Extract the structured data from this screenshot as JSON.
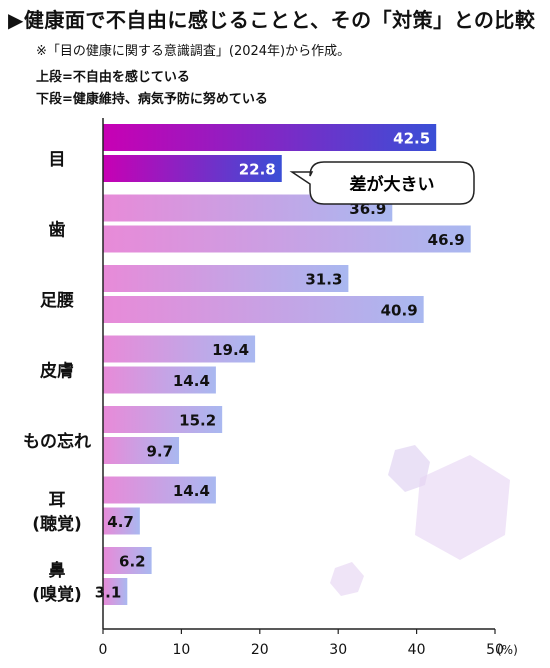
{
  "title": "▶健康面で不自由に感じることと、その「対策」との比較",
  "note": "※「目の健康に関する意識調査」(2024年)から作成。",
  "legend_upper": "上段=不自由を感じている",
  "legend_lower": "下段=健康維持、病気予防に努めている",
  "callout": "差が大きい",
  "chart_data": {
    "type": "bar",
    "orientation": "horizontal",
    "categories": [
      [
        "目"
      ],
      [
        "歯"
      ],
      [
        "足腰"
      ],
      [
        "皮膚"
      ],
      [
        "もの忘れ"
      ],
      [
        "耳",
        "(聴覚)"
      ],
      [
        "鼻",
        "(嗅覚)"
      ]
    ],
    "series": [
      {
        "values": [
          42.5,
          36.9,
          31.3,
          19.4,
          15.2,
          14.4,
          6.2
        ]
      },
      {
        "values": [
          22.8,
          46.9,
          40.9,
          14.4,
          9.7,
          4.7,
          3.1
        ]
      }
    ],
    "xlim": [
      0,
      50
    ],
    "xticks": [
      0,
      10,
      20,
      30,
      40,
      50
    ],
    "unit": "(%)",
    "colors": {
      "highlight_start": "#c800b4",
      "highlight_end": "#3a4fd6",
      "normal_start": "#e88ad8",
      "normal_end": "#a9b8f0"
    }
  }
}
